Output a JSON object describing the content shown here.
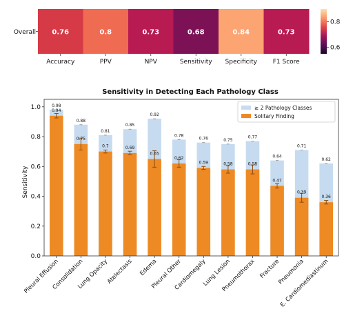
{
  "chart_data": [
    {
      "type": "heatmap",
      "row_label": "Overall",
      "columns": [
        "Accuracy",
        "PPV",
        "NPV",
        "Sensitivity",
        "Specificity",
        "F1 Score"
      ],
      "values": [
        0.76,
        0.8,
        0.73,
        0.68,
        0.84,
        0.73
      ],
      "cell_labels": [
        "0.76",
        "0.8",
        "0.73",
        "0.68",
        "0.84",
        "0.73"
      ],
      "colors": [
        "#d63a46",
        "#ef6b52",
        "#b81a52",
        "#7c1156",
        "#fca472",
        "#b81a52"
      ],
      "colorbar": {
        "ticks": [
          "0.8",
          "0.6"
        ],
        "tick_values": [
          0.8,
          0.6
        ],
        "range": [
          0.55,
          0.9
        ],
        "stops": [
          "#fde0b0",
          "#f89a6a",
          "#e4464a",
          "#a2195a",
          "#5a0f5a",
          "#1a0a25"
        ]
      }
    },
    {
      "type": "bar",
      "title": "Sensitivity in Detecting Each Pathology Class",
      "ylabel": "Sensitivity",
      "ylim": [
        0,
        1.05
      ],
      "yticks": [
        "0.0",
        "0.2",
        "0.4",
        "0.6",
        "0.8",
        "1.0"
      ],
      "ytick_values": [
        0.0,
        0.2,
        0.4,
        0.6,
        0.8,
        1.0
      ],
      "categories": [
        "Pleural Effusion",
        "Consolidation",
        "Lung Opacity",
        "Atelectasis",
        "Edema",
        "Pleural Other",
        "Cardiomegaly",
        "Lung Lesion",
        "Pneumothorax",
        "Fracture",
        "Pneumonia",
        "E. Cardiomediastinum"
      ],
      "series": [
        {
          "name": "≥ 2 Pathology Classes",
          "color": "#c6dbef",
          "values": [
            0.98,
            0.88,
            0.81,
            0.85,
            0.92,
            0.78,
            0.76,
            0.75,
            0.77,
            0.64,
            0.71,
            0.62
          ],
          "labels": [
            "0.98",
            "0.88",
            "0.81",
            "0.85",
            "0.92",
            "0.78",
            "0.76",
            "0.75",
            "0.77",
            "0.64",
            "0.71",
            "0.62"
          ]
        },
        {
          "name": "Solitary Finding",
          "color": "#ee8a24",
          "values": [
            0.94,
            0.75,
            0.7,
            0.69,
            0.65,
            0.62,
            0.59,
            0.58,
            0.58,
            0.47,
            0.39,
            0.36
          ],
          "labels": [
            "0.94",
            "0.75",
            "0.7",
            "0.69",
            "0.65",
            "0.62",
            "0.59",
            "0.58",
            "0.58",
            "0.47",
            "0.39",
            "0.36"
          ],
          "error": [
            0.015,
            0.04,
            0.01,
            0.012,
            0.055,
            0.025,
            0.01,
            0.025,
            0.03,
            0.015,
            0.03,
            0.012
          ]
        }
      ],
      "legend_position": "top-right"
    }
  ]
}
